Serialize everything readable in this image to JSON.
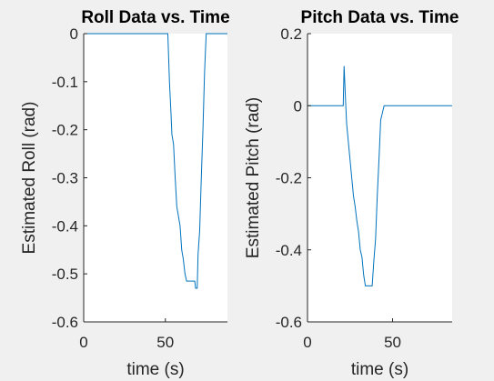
{
  "chart_data": [
    {
      "type": "line",
      "title": "Roll Data vs. Time",
      "x_label": "time (s)",
      "y_label": "Estimated Roll (rad)",
      "x": [
        0,
        51.5,
        52.5,
        53.5,
        54,
        55,
        56,
        57,
        58,
        59,
        60,
        61,
        62,
        63,
        68,
        68.5,
        69.5,
        70,
        71,
        72,
        73,
        74,
        75,
        88
      ],
      "values": [
        0,
        0,
        -0.1,
        -0.17,
        -0.21,
        -0.23,
        -0.3,
        -0.36,
        -0.38,
        -0.4,
        -0.45,
        -0.47,
        -0.5,
        -0.515,
        -0.515,
        -0.53,
        -0.53,
        -0.46,
        -0.41,
        -0.3,
        -0.2,
        -0.08,
        0,
        0
      ],
      "color": "#0072bd",
      "xlim": [
        0,
        88
      ],
      "xticks": [
        0,
        50
      ],
      "ylim": [
        -0.6,
        0
      ],
      "yticks": [
        -0.6,
        -0.5,
        -0.4,
        -0.3,
        -0.2,
        -0.1,
        0
      ]
    },
    {
      "type": "line",
      "title": "Pitch Data vs. Time",
      "x_label": "time (s)",
      "y_label": "Estimated Pitch (rad)",
      "x": [
        0,
        21,
        21.5,
        22.5,
        23,
        24,
        25,
        26,
        27,
        28,
        29,
        30,
        31,
        32,
        33,
        34,
        38,
        39,
        40,
        41,
        42,
        43,
        44,
        45,
        85
      ],
      "values": [
        0,
        0,
        0.11,
        0,
        -0.05,
        -0.1,
        -0.15,
        -0.2,
        -0.25,
        -0.28,
        -0.32,
        -0.35,
        -0.4,
        -0.42,
        -0.47,
        -0.5,
        -0.5,
        -0.43,
        -0.37,
        -0.25,
        -0.15,
        -0.04,
        -0.02,
        0,
        0
      ],
      "color": "#0072bd",
      "xlim": [
        0,
        85
      ],
      "xticks": [
        0,
        50
      ],
      "ylim": [
        -0.6,
        0.2
      ],
      "yticks": [
        -0.6,
        -0.4,
        -0.2,
        0,
        0.2
      ]
    }
  ]
}
